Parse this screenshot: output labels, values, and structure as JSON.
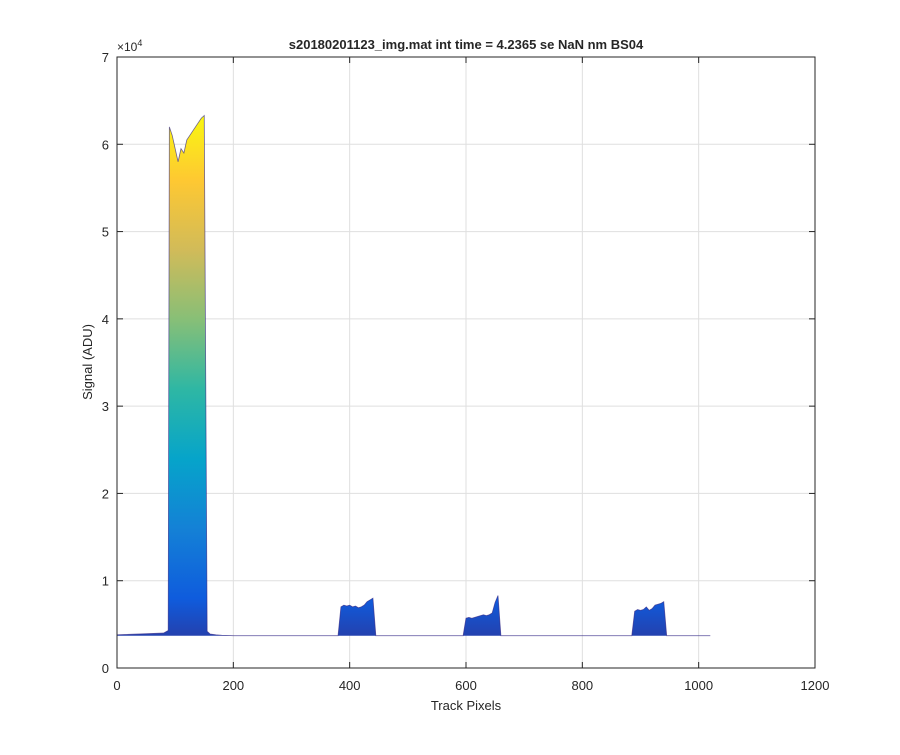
{
  "figure": {
    "title": "s20180201123_img.mat int time = 4.2365 se  NaN nm BS04"
  },
  "chart_data": {
    "type": "area",
    "title": "s20180201123_img.mat int time = 4.2365 se  NaN nm BS04",
    "xlabel": "Track Pixels",
    "ylabel": "Signal (ADU)",
    "xlim": [
      0,
      1200
    ],
    "ylim": [
      0,
      70000
    ],
    "xticks": [
      0,
      200,
      400,
      600,
      800,
      1000,
      1200
    ],
    "yticks": [
      0,
      1,
      2,
      3,
      4,
      5,
      6,
      7
    ],
    "yticks_labels": [
      "0",
      "1",
      "2",
      "3",
      "4",
      "5",
      "6",
      "7"
    ],
    "y_exponent_label": "×10",
    "y_exponent": "4",
    "grid": true,
    "colormap": [
      "#352a87",
      "#0f5cdd",
      "#1481d6",
      "#06a4ca",
      "#2eb7a4",
      "#87bf77",
      "#d1bb59",
      "#fec832",
      "#f9fb0e"
    ],
    "baseline": 3700,
    "series": [
      {
        "x": [
          0,
          80,
          88,
          90,
          95,
          100,
          105,
          110,
          115,
          120,
          125,
          130,
          135,
          140,
          145,
          150,
          155,
          160,
          170,
          180,
          200,
          380,
          385,
          390,
          395,
          400,
          405,
          410,
          415,
          420,
          425,
          430,
          435,
          440,
          445,
          450,
          595,
          600,
          605,
          610,
          615,
          620,
          625,
          630,
          635,
          640,
          645,
          650,
          655,
          660,
          885,
          890,
          895,
          900,
          905,
          910,
          915,
          920,
          925,
          930,
          935,
          940,
          945,
          950,
          1020
        ],
        "y": [
          3800,
          4000,
          4300,
          62000,
          61000,
          59500,
          58000,
          59500,
          59000,
          60500,
          61000,
          61500,
          62000,
          62500,
          63000,
          63300,
          4200,
          3900,
          3800,
          3750,
          3700,
          3700,
          7000,
          7200,
          7100,
          7200,
          7000,
          7100,
          6900,
          7000,
          7200,
          7600,
          7800,
          8000,
          3700,
          3700,
          3700,
          5700,
          5800,
          5700,
          5800,
          5900,
          6000,
          6100,
          6000,
          6100,
          6300,
          7500,
          8300,
          3700,
          3700,
          6500,
          6700,
          6600,
          6700,
          7000,
          6600,
          6800,
          7200,
          7300,
          7400,
          7600,
          3700,
          3700,
          3700
        ]
      }
    ]
  }
}
